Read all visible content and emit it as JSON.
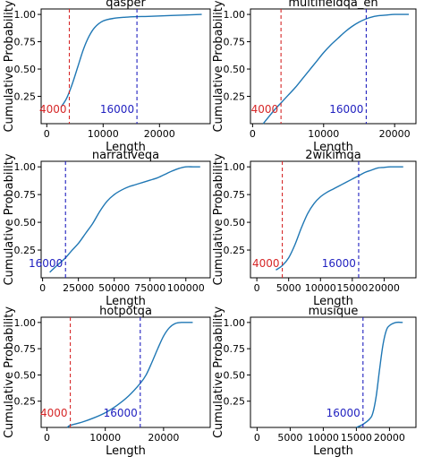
{
  "colors": {
    "curve": "#1f77b4",
    "vline_4000": "#d62728",
    "vline_16000": "#1f1fbf",
    "label_4000": "#d62728",
    "label_16000": "#1f1fbf",
    "axes": "#000000"
  },
  "chart_data": [
    {
      "type": "line",
      "title": "qasper",
      "xlabel": "Length",
      "ylabel": "Cumulative Probability",
      "xlim": [
        -1000,
        29000
      ],
      "ylim": [
        0.0,
        1.05
      ],
      "xticks": [
        0,
        10000,
        20000
      ],
      "yticks": [
        0.25,
        0.5,
        0.75,
        1.0
      ],
      "vlines": [
        {
          "x": 4000,
          "label": "4000",
          "color": "red"
        },
        {
          "x": 16000,
          "label": "16000",
          "color": "blue"
        }
      ],
      "series": [
        {
          "x": [
            2500,
            3500,
            4500,
            5500,
            6500,
            7500,
            8500,
            10000,
            12000,
            14000,
            16000,
            18000,
            22000,
            27500
          ],
          "y": [
            0.15,
            0.23,
            0.36,
            0.52,
            0.68,
            0.8,
            0.88,
            0.94,
            0.965,
            0.975,
            0.98,
            0.982,
            0.99,
            1.0
          ]
        }
      ]
    },
    {
      "type": "line",
      "title": "multifieldqa_en",
      "xlabel": "Length",
      "ylabel": "Cumulative Probability",
      "xlim": [
        -300,
        23000
      ],
      "ylim": [
        0.0,
        1.05
      ],
      "xticks": [
        0,
        10000,
        20000
      ],
      "yticks": [
        0.25,
        0.5,
        0.75,
        1.0
      ],
      "vlines": [
        {
          "x": 4000,
          "label": "4000",
          "color": "red"
        },
        {
          "x": 16000,
          "label": "16000",
          "color": "blue"
        }
      ],
      "series": [
        {
          "x": [
            1500,
            3000,
            4000,
            5000,
            6000,
            7000,
            8000,
            9000,
            10000,
            11000,
            12000,
            13000,
            14000,
            15000,
            16000,
            17000,
            18000,
            19000,
            20000,
            22000
          ],
          "y": [
            0.0,
            0.12,
            0.19,
            0.26,
            0.33,
            0.41,
            0.49,
            0.57,
            0.65,
            0.72,
            0.78,
            0.84,
            0.89,
            0.93,
            0.96,
            0.98,
            0.99,
            0.995,
            1.0,
            1.0
          ]
        }
      ]
    },
    {
      "type": "line",
      "title": "narrativeqa",
      "xlabel": "Length",
      "ylabel": "Cumulative Probability",
      "xlim": [
        -1000,
        117000
      ],
      "ylim": [
        0.0,
        1.05
      ],
      "xticks": [
        0,
        25000,
        50000,
        75000,
        100000
      ],
      "yticks": [
        0.25,
        0.5,
        0.75,
        1.0
      ],
      "vlines": [
        {
          "x": 16000,
          "label": "16000",
          "color": "blue"
        }
      ],
      "series": [
        {
          "x": [
            5000,
            10000,
            16000,
            20000,
            25000,
            30000,
            35000,
            40000,
            45000,
            50000,
            55000,
            60000,
            65000,
            70000,
            75000,
            80000,
            85000,
            90000,
            95000,
            100000,
            105000,
            110000
          ],
          "y": [
            0.05,
            0.11,
            0.18,
            0.24,
            0.31,
            0.4,
            0.49,
            0.6,
            0.69,
            0.75,
            0.79,
            0.82,
            0.84,
            0.86,
            0.88,
            0.9,
            0.93,
            0.96,
            0.985,
            1.0,
            1.0,
            1.0
          ]
        }
      ]
    },
    {
      "type": "line",
      "title": "2wikimqa",
      "xlabel": "Length",
      "ylabel": "Cumulative Probability",
      "xlim": [
        -1000,
        25000
      ],
      "ylim": [
        0.0,
        1.05
      ],
      "xticks": [
        0,
        5000,
        10000,
        15000,
        20000
      ],
      "yticks": [
        0.25,
        0.5,
        0.75,
        1.0
      ],
      "vlines": [
        {
          "x": 4000,
          "label": "4000",
          "color": "red"
        },
        {
          "x": 16000,
          "label": "16000",
          "color": "blue"
        }
      ],
      "series": [
        {
          "x": [
            3000,
            4000,
            5000,
            6000,
            7000,
            8000,
            9000,
            10000,
            11000,
            12000,
            13000,
            14000,
            15000,
            16000,
            17000,
            18000,
            19000,
            20000,
            21000,
            23000
          ],
          "y": [
            0.07,
            0.11,
            0.18,
            0.3,
            0.45,
            0.58,
            0.67,
            0.73,
            0.77,
            0.8,
            0.83,
            0.86,
            0.89,
            0.92,
            0.95,
            0.97,
            0.99,
            0.995,
            1.0,
            1.0
          ]
        }
      ]
    },
    {
      "type": "line",
      "title": "hotpotqa",
      "xlabel": "Length",
      "ylabel": "Cumulative Probability",
      "xlim": [
        -1000,
        28000
      ],
      "ylim": [
        0.0,
        1.05
      ],
      "xticks": [
        0,
        10000,
        20000
      ],
      "yticks": [
        0.25,
        0.5,
        0.75,
        1.0
      ],
      "vlines": [
        {
          "x": 4000,
          "label": "4000",
          "color": "red"
        },
        {
          "x": 16000,
          "label": "16000",
          "color": "blue"
        }
      ],
      "series": [
        {
          "x": [
            3500,
            4000,
            6000,
            8000,
            10000,
            12000,
            14000,
            16000,
            17000,
            18000,
            19000,
            20000,
            21000,
            22000,
            23000,
            25000
          ],
          "y": [
            0.0,
            0.02,
            0.05,
            0.09,
            0.14,
            0.21,
            0.3,
            0.42,
            0.5,
            0.62,
            0.75,
            0.87,
            0.95,
            0.99,
            1.0,
            1.0
          ]
        }
      ]
    },
    {
      "type": "line",
      "title": "musique",
      "xlabel": "Length",
      "ylabel": "Cumulative Probability",
      "xlim": [
        -1000,
        24000
      ],
      "ylim": [
        0.0,
        1.05
      ],
      "xticks": [
        0,
        5000,
        10000,
        15000,
        20000
      ],
      "yticks": [
        0.25,
        0.5,
        0.75,
        1.0
      ],
      "vlines": [
        {
          "x": 16000,
          "label": "16000",
          "color": "blue"
        }
      ],
      "series": [
        {
          "x": [
            15000,
            16000,
            17000,
            17500,
            18000,
            18500,
            19000,
            19500,
            20000,
            21000,
            22000
          ],
          "y": [
            0.0,
            0.03,
            0.08,
            0.14,
            0.3,
            0.55,
            0.78,
            0.92,
            0.97,
            1.0,
            1.0
          ]
        }
      ]
    }
  ]
}
